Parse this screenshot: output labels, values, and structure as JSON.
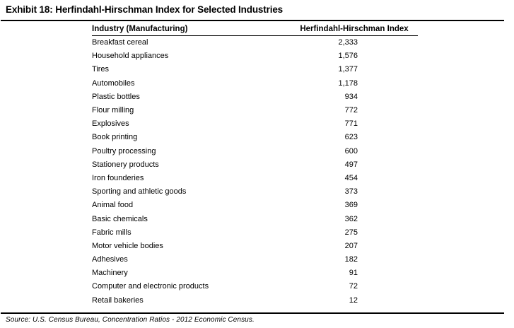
{
  "exhibit": {
    "title": "Exhibit 18: Herfindahl-Hirschman Index for Selected Industries",
    "source_note": "Source: U.S. Census Bureau, Concentration Ratios - 2012 Economic Census."
  },
  "table": {
    "headers": {
      "industry": "Industry (Manufacturing)",
      "index": "Herfindahl-Hirschman Index"
    },
    "rows": [
      {
        "industry": "Breakfast cereal",
        "index": "2,333"
      },
      {
        "industry": "Household appliances",
        "index": "1,576"
      },
      {
        "industry": "Tires",
        "index": "1,377"
      },
      {
        "industry": "Automobiles",
        "index": "1,178"
      },
      {
        "industry": "Plastic bottles",
        "index": "934"
      },
      {
        "industry": "Flour milling",
        "index": "772"
      },
      {
        "industry": "Explosives",
        "index": "771"
      },
      {
        "industry": "Book printing",
        "index": "623"
      },
      {
        "industry": "Poultry processing",
        "index": "600"
      },
      {
        "industry": "Stationery products",
        "index": "497"
      },
      {
        "industry": "Iron founderies",
        "index": "454"
      },
      {
        "industry": "Sporting and athletic goods",
        "index": "373"
      },
      {
        "industry": "Animal food",
        "index": "369"
      },
      {
        "industry": "Basic chemicals",
        "index": "362"
      },
      {
        "industry": "Fabric mills",
        "index": "275"
      },
      {
        "industry": "Motor vehicle bodies",
        "index": "207"
      },
      {
        "industry": "Adhesives",
        "index": "182"
      },
      {
        "industry": "Machinery",
        "index": "91"
      },
      {
        "industry": "Computer and electronic products",
        "index": "72"
      },
      {
        "industry": "Retail bakeries",
        "index": "12"
      }
    ]
  },
  "colors": {
    "text": "#000000",
    "background": "#ffffff",
    "rule": "#000000"
  }
}
